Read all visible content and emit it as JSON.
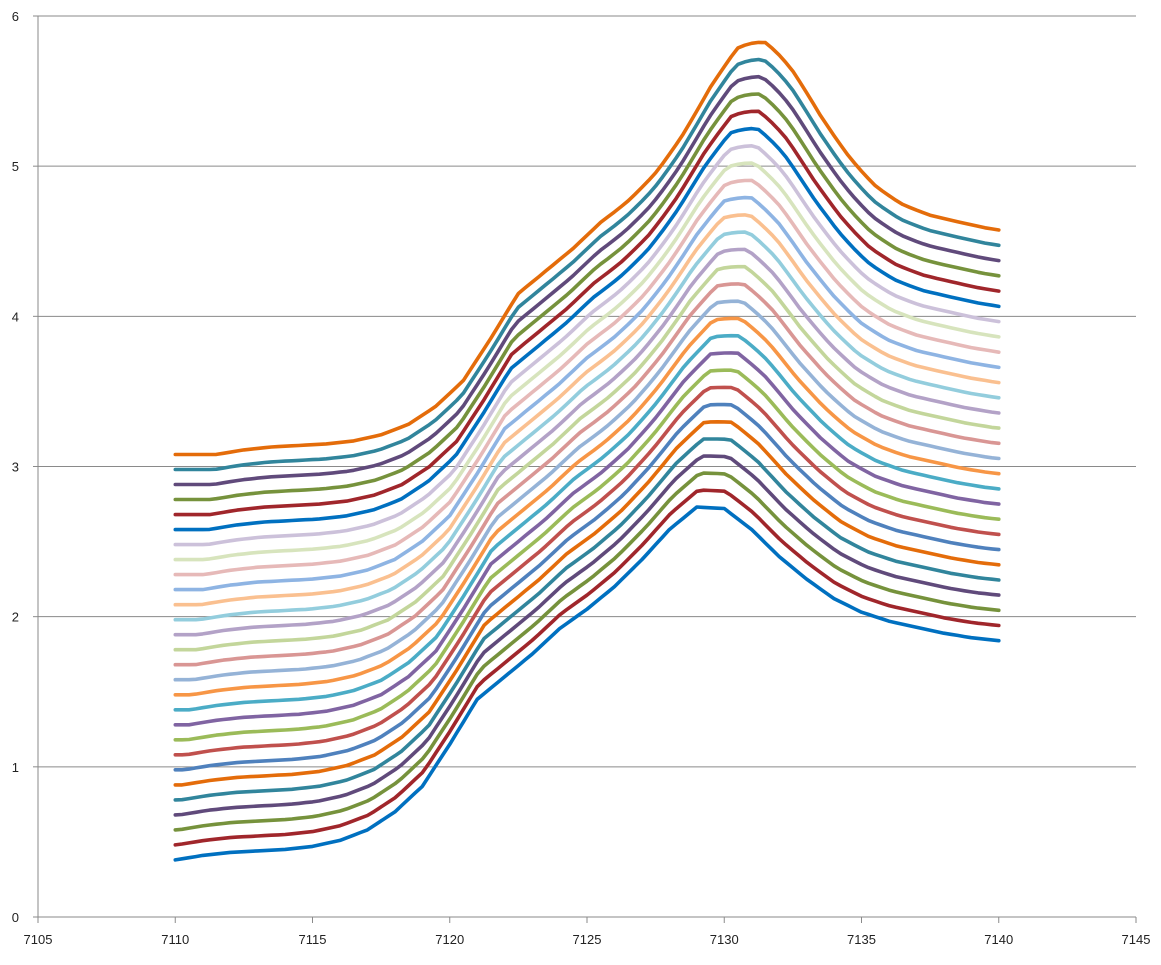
{
  "chart_data": {
    "type": "line",
    "title": "",
    "xlabel": "",
    "ylabel": "",
    "xlim": [
      7105,
      7145
    ],
    "ylim": [
      0,
      6
    ],
    "x_ticks": [
      "7105",
      "7110",
      "7115",
      "7120",
      "7125",
      "7130",
      "7135",
      "7140",
      "7145"
    ],
    "y_ticks": [
      "0",
      "1",
      "2",
      "3",
      "4",
      "5",
      "6"
    ],
    "grid": "horizontal major gridlines",
    "legend": "none",
    "x": [
      7110,
      7111,
      7112,
      7113,
      7114,
      7115,
      7116,
      7117,
      7118,
      7119,
      7120,
      7121,
      7122,
      7123,
      7124,
      7125,
      7126,
      7127,
      7128,
      7129,
      7130,
      7131,
      7132,
      7133,
      7134,
      7135,
      7136,
      7137,
      7138,
      7139,
      7140
    ],
    "base_series": [
      0.38,
      0.41,
      0.43,
      0.44,
      0.45,
      0.47,
      0.51,
      0.58,
      0.7,
      0.87,
      1.15,
      1.45,
      1.6,
      1.75,
      1.92,
      2.05,
      2.2,
      2.38,
      2.58,
      2.73,
      2.72,
      2.58,
      2.4,
      2.25,
      2.12,
      2.03,
      1.97,
      1.93,
      1.89,
      1.86,
      1.84
    ],
    "series_count": 28,
    "series_offset_step": 0.1,
    "peak_shift_per_series": 0.055,
    "peak_gain_per_series": 0.015,
    "colors": [
      "#0070C0",
      "#A0262B",
      "#76923C",
      "#604A7B",
      "#31859C",
      "#E46C0A",
      "#4F81BD",
      "#C0504D",
      "#9BBB59",
      "#8064A2",
      "#4BACC6",
      "#F79646",
      "#95B3D7",
      "#D99694",
      "#C3D69B",
      "#B3A2C7",
      "#93CDDD",
      "#FAC090",
      "#8EB4E3",
      "#E6B9B8",
      "#D7E4BD",
      "#CCC1DA"
    ]
  }
}
